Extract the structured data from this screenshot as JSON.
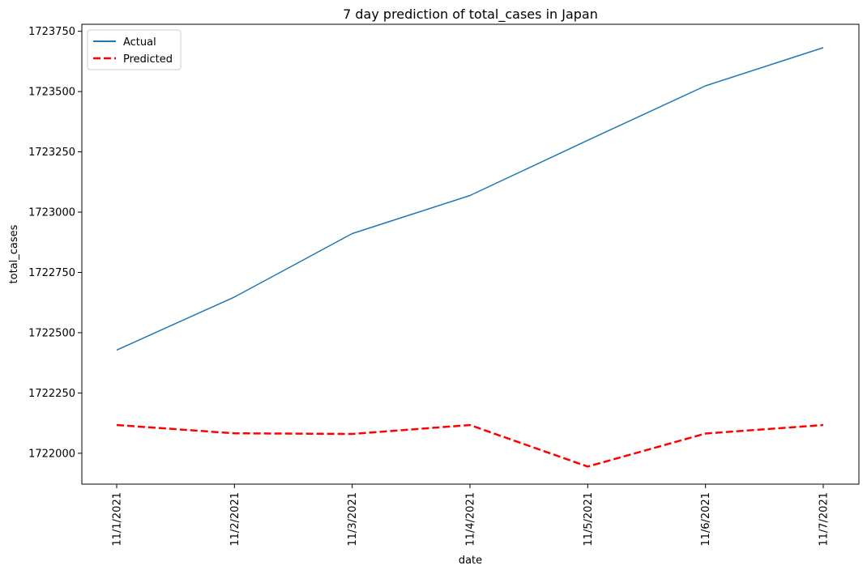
{
  "chart_data": {
    "type": "line",
    "title": "7 day prediction of total_cases in Japan",
    "xlabel": "date",
    "ylabel": "total_cases",
    "categories": [
      "11/1/2021",
      "11/2/2021",
      "11/3/2021",
      "11/4/2021",
      "11/5/2021",
      "11/6/2021",
      "11/7/2021"
    ],
    "yticks": [
      1722000,
      1722250,
      1722500,
      1722750,
      1723000,
      1723250,
      1723500,
      1723750
    ],
    "ylim": [
      1721872,
      1723779
    ],
    "series": [
      {
        "name": "Actual",
        "color": "#1f77b4",
        "style": "solid",
        "values": [
          1722428,
          1722648,
          1722911,
          1723069,
          1723298,
          1723524,
          1723682
        ]
      },
      {
        "name": "Predicted",
        "color": "#ff0000",
        "style": "dashed",
        "values": [
          1722117,
          1722083,
          1722080,
          1722117,
          1721945,
          1722082,
          1722117
        ]
      }
    ],
    "legend": "top-left",
    "grid": false
  }
}
